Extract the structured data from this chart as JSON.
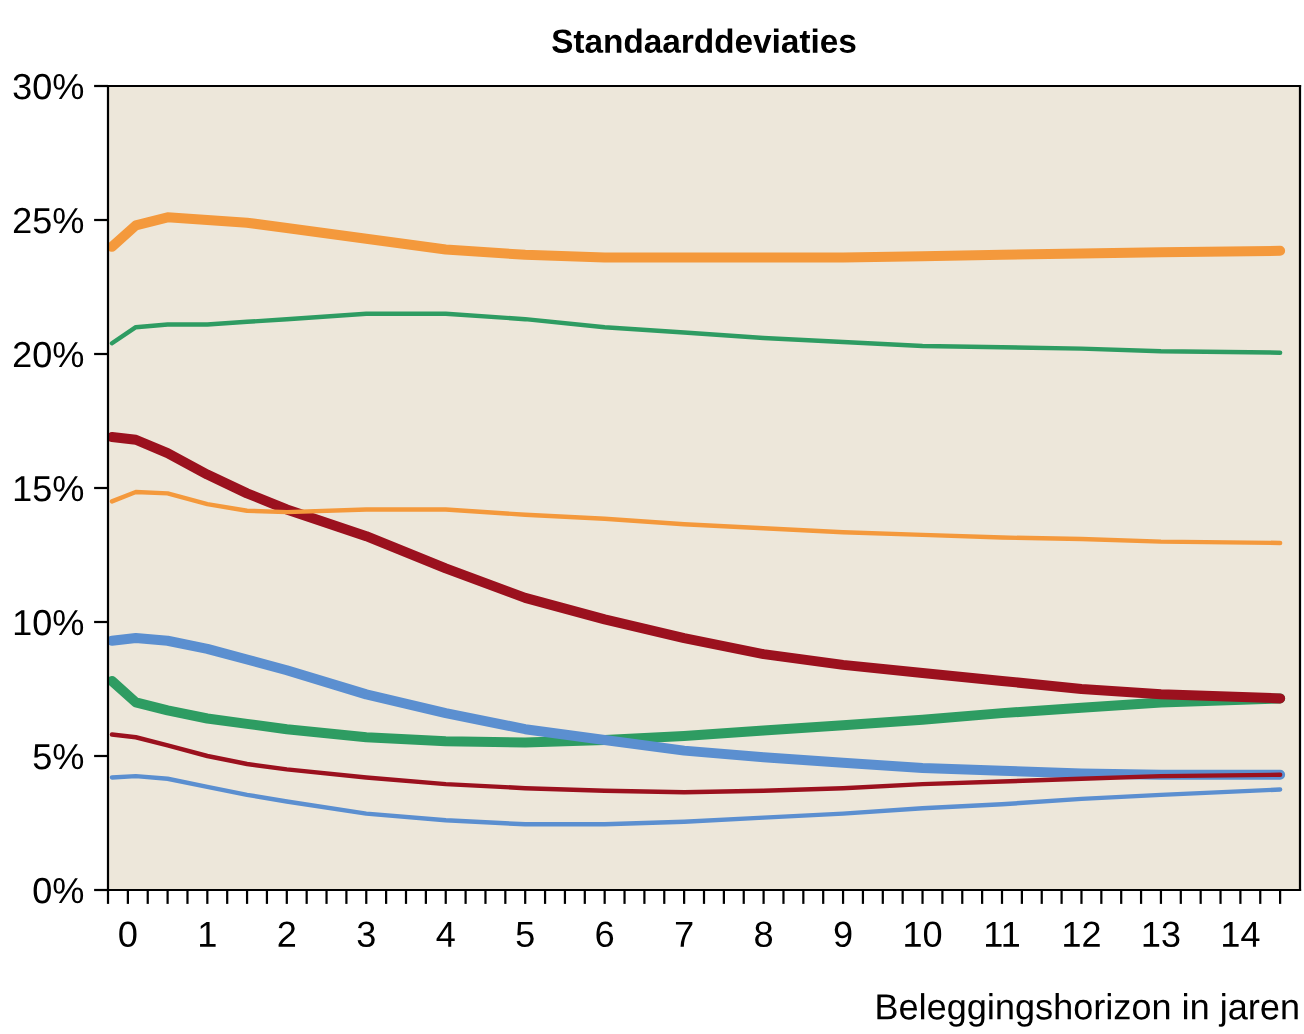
{
  "chart_data": {
    "type": "line",
    "title": "Standaarddeviaties",
    "xlabel": "Beleggingshorizon in jaren",
    "x": [
      -0.2,
      0.1,
      0.5,
      1,
      1.5,
      2,
      3,
      4,
      5,
      6,
      7,
      8,
      9,
      10,
      11,
      12,
      13,
      14.5
    ],
    "series": [
      {
        "color": "#f4993c",
        "values": [
          24.0,
          24.8,
          25.1,
          25.0,
          24.9,
          24.7,
          24.3,
          23.9,
          23.7,
          23.6,
          23.6,
          23.6,
          23.6,
          23.65,
          23.7,
          23.75,
          23.8,
          23.85
        ]
      },
      {
        "color": "#f4993c",
        "values": [
          14.5,
          14.85,
          14.8,
          14.4,
          14.15,
          14.1,
          14.2,
          14.2,
          14.0,
          13.85,
          13.65,
          13.5,
          13.35,
          13.25,
          13.15,
          13.1,
          13.0,
          12.95
        ]
      },
      {
        "color": "#2e9c62",
        "values": [
          7.8,
          7.0,
          6.7,
          6.4,
          6.2,
          6.0,
          5.7,
          5.55,
          5.5,
          5.6,
          5.75,
          5.95,
          6.15,
          6.35,
          6.6,
          6.8,
          7.0,
          7.15
        ]
      },
      {
        "color": "#2e9c62",
        "values": [
          20.4,
          21.0,
          21.1,
          21.1,
          21.2,
          21.3,
          21.5,
          21.5,
          21.3,
          21.0,
          20.8,
          20.6,
          20.45,
          20.3,
          20.25,
          20.2,
          20.1,
          20.05
        ]
      },
      {
        "color": "#9b111e",
        "values": [
          16.9,
          16.8,
          16.3,
          15.5,
          14.8,
          14.2,
          13.2,
          12.0,
          10.9,
          10.1,
          9.4,
          8.8,
          8.4,
          8.1,
          7.8,
          7.5,
          7.3,
          7.15
        ]
      },
      {
        "color": "#9b111e",
        "values": [
          5.8,
          5.7,
          5.4,
          5.0,
          4.7,
          4.5,
          4.2,
          3.95,
          3.8,
          3.7,
          3.65,
          3.7,
          3.8,
          3.95,
          4.05,
          4.15,
          4.25,
          4.3
        ]
      },
      {
        "color": "#5b8fd0",
        "values": [
          9.3,
          9.4,
          9.3,
          9.0,
          8.6,
          8.2,
          7.3,
          6.6,
          6.0,
          5.6,
          5.2,
          4.95,
          4.75,
          4.55,
          4.45,
          4.35,
          4.3,
          4.3
        ]
      },
      {
        "color": "#5b8fd0",
        "values": [
          4.2,
          4.25,
          4.15,
          3.85,
          3.55,
          3.3,
          2.85,
          2.6,
          2.45,
          2.45,
          2.55,
          2.7,
          2.85,
          3.05,
          3.2,
          3.4,
          3.55,
          3.75
        ]
      }
    ],
    "xlim": [
      -0.25,
      14.75
    ],
    "ylim": [
      0,
      30
    ],
    "xticks": [
      {
        "value": -0.25,
        "label": null
      },
      0,
      {
        "value": 0.25,
        "label": null
      },
      {
        "value": 0.5,
        "label": null
      },
      {
        "value": 0.75,
        "label": null
      },
      1,
      {
        "value": 1.25,
        "label": null
      },
      {
        "value": 1.5,
        "label": null
      },
      {
        "value": 1.75,
        "label": null
      },
      2,
      {
        "value": 2.25,
        "label": null
      },
      {
        "value": 2.5,
        "label": null
      },
      {
        "value": 2.75,
        "label": null
      },
      3,
      {
        "value": 3.25,
        "label": null
      },
      {
        "value": 3.5,
        "label": null
      },
      {
        "value": 3.75,
        "label": null
      },
      4,
      {
        "value": 4.25,
        "label": null
      },
      {
        "value": 4.5,
        "label": null
      },
      {
        "value": 4.75,
        "label": null
      },
      5,
      {
        "value": 5.25,
        "label": null
      },
      {
        "value": 5.5,
        "label": null
      },
      {
        "value": 5.75,
        "label": null
      },
      6,
      {
        "value": 6.25,
        "label": null
      },
      {
        "value": 6.5,
        "label": null
      },
      {
        "value": 6.75,
        "label": null
      },
      7,
      {
        "value": 7.25,
        "label": null
      },
      {
        "value": 7.5,
        "label": null
      },
      {
        "value": 7.75,
        "label": null
      },
      8,
      {
        "value": 8.25,
        "label": null
      },
      {
        "value": 8.5,
        "label": null
      },
      {
        "value": 8.75,
        "label": null
      },
      9,
      {
        "value": 9.25,
        "label": null
      },
      {
        "value": 9.5,
        "label": null
      },
      {
        "value": 9.75,
        "label": null
      },
      10,
      {
        "value": 10.25,
        "label": null
      },
      {
        "value": 10.5,
        "label": null
      },
      {
        "value": 10.75,
        "label": null
      },
      11,
      {
        "value": 11.25,
        "label": null
      },
      {
        "value": 11.5,
        "label": null
      },
      {
        "value": 11.75,
        "label": null
      },
      12,
      {
        "value": 12.25,
        "label": null
      },
      {
        "value": 12.5,
        "label": null
      },
      {
        "value": 12.75,
        "label": null
      },
      13,
      {
        "value": 13.25,
        "label": null
      },
      {
        "value": 13.5,
        "label": null
      },
      {
        "value": 13.75,
        "label": null
      },
      14,
      {
        "value": 14.25,
        "label": null
      },
      {
        "value": 14.5,
        "label": null
      }
    ],
    "yticks": [
      {
        "value": 0,
        "label": "0%"
      },
      {
        "value": 5,
        "label": "5%"
      },
      {
        "value": 10,
        "label": "10%"
      },
      {
        "value": 15,
        "label": "15%"
      },
      {
        "value": 20,
        "label": "20%"
      },
      {
        "value": 25,
        "label": "25%"
      },
      {
        "value": 30,
        "label": "30%"
      }
    ],
    "grid": false,
    "legend": false,
    "marker": "none",
    "line_style": "solid"
  }
}
